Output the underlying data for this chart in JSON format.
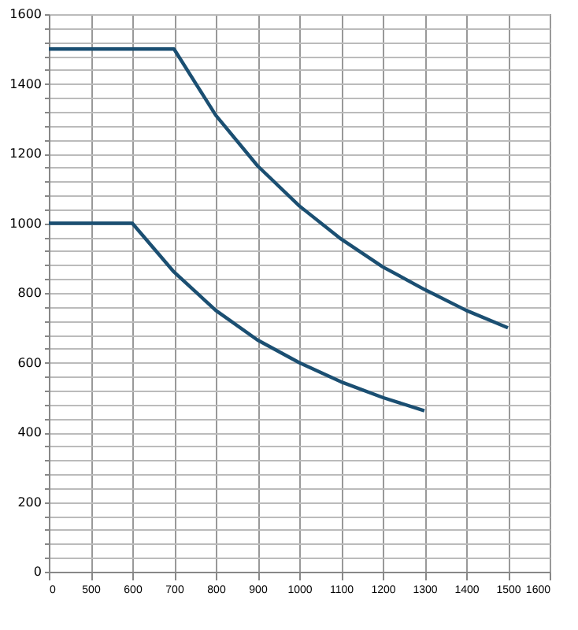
{
  "chart_data": {
    "type": "line",
    "categories": [
      "0",
      "500",
      "600",
      "700",
      "800",
      "900",
      "1000",
      "1100",
      "1200",
      "1300",
      "1400",
      "1500",
      "1600"
    ],
    "series": [
      {
        "color": "#1b4f72",
        "values": [
          1500,
          1500,
          1500,
          1500,
          1310,
          1165,
          1050,
          955,
          875,
          810,
          750,
          700,
          null
        ]
      },
      {
        "color": "#1b4f72",
        "values": [
          1000,
          1000,
          1000,
          860,
          750,
          665,
          600,
          545,
          500,
          462,
          null,
          null,
          null
        ]
      }
    ],
    "ylim": [
      0,
      1600
    ],
    "yticks": [
      0,
      {
        "value": 40,
        "label": null
      },
      {
        "value": 80,
        "label": null
      },
      {
        "value": 120,
        "label": null
      },
      {
        "value": 160,
        "label": null
      },
      200,
      {
        "value": 240,
        "label": null
      },
      {
        "value": 280,
        "label": null
      },
      {
        "value": 320,
        "label": null
      },
      {
        "value": 360,
        "label": null
      },
      400,
      {
        "value": 440,
        "label": null
      },
      {
        "value": 480,
        "label": null
      },
      {
        "value": 520,
        "label": null
      },
      {
        "value": 560,
        "label": null
      },
      600,
      {
        "value": 640,
        "label": null
      },
      {
        "value": 680,
        "label": null
      },
      {
        "value": 720,
        "label": null
      },
      {
        "value": 760,
        "label": null
      },
      800,
      {
        "value": 840,
        "label": null
      },
      {
        "value": 880,
        "label": null
      },
      {
        "value": 920,
        "label": null
      },
      {
        "value": 960,
        "label": null
      },
      1000,
      {
        "value": 1040,
        "label": null
      },
      {
        "value": 1080,
        "label": null
      },
      {
        "value": 1120,
        "label": null
      },
      {
        "value": 1160,
        "label": null
      },
      1200,
      {
        "value": 1240,
        "label": null
      },
      {
        "value": 1280,
        "label": null
      },
      {
        "value": 1320,
        "label": null
      },
      {
        "value": 1360,
        "label": null
      },
      1400,
      {
        "value": 1440,
        "label": null
      },
      {
        "value": 1480,
        "label": null
      },
      {
        "value": 1520,
        "label": null
      },
      {
        "value": 1560,
        "label": null
      },
      1600
    ],
    "grid": true,
    "marker": "none",
    "line_style": "solid"
  }
}
